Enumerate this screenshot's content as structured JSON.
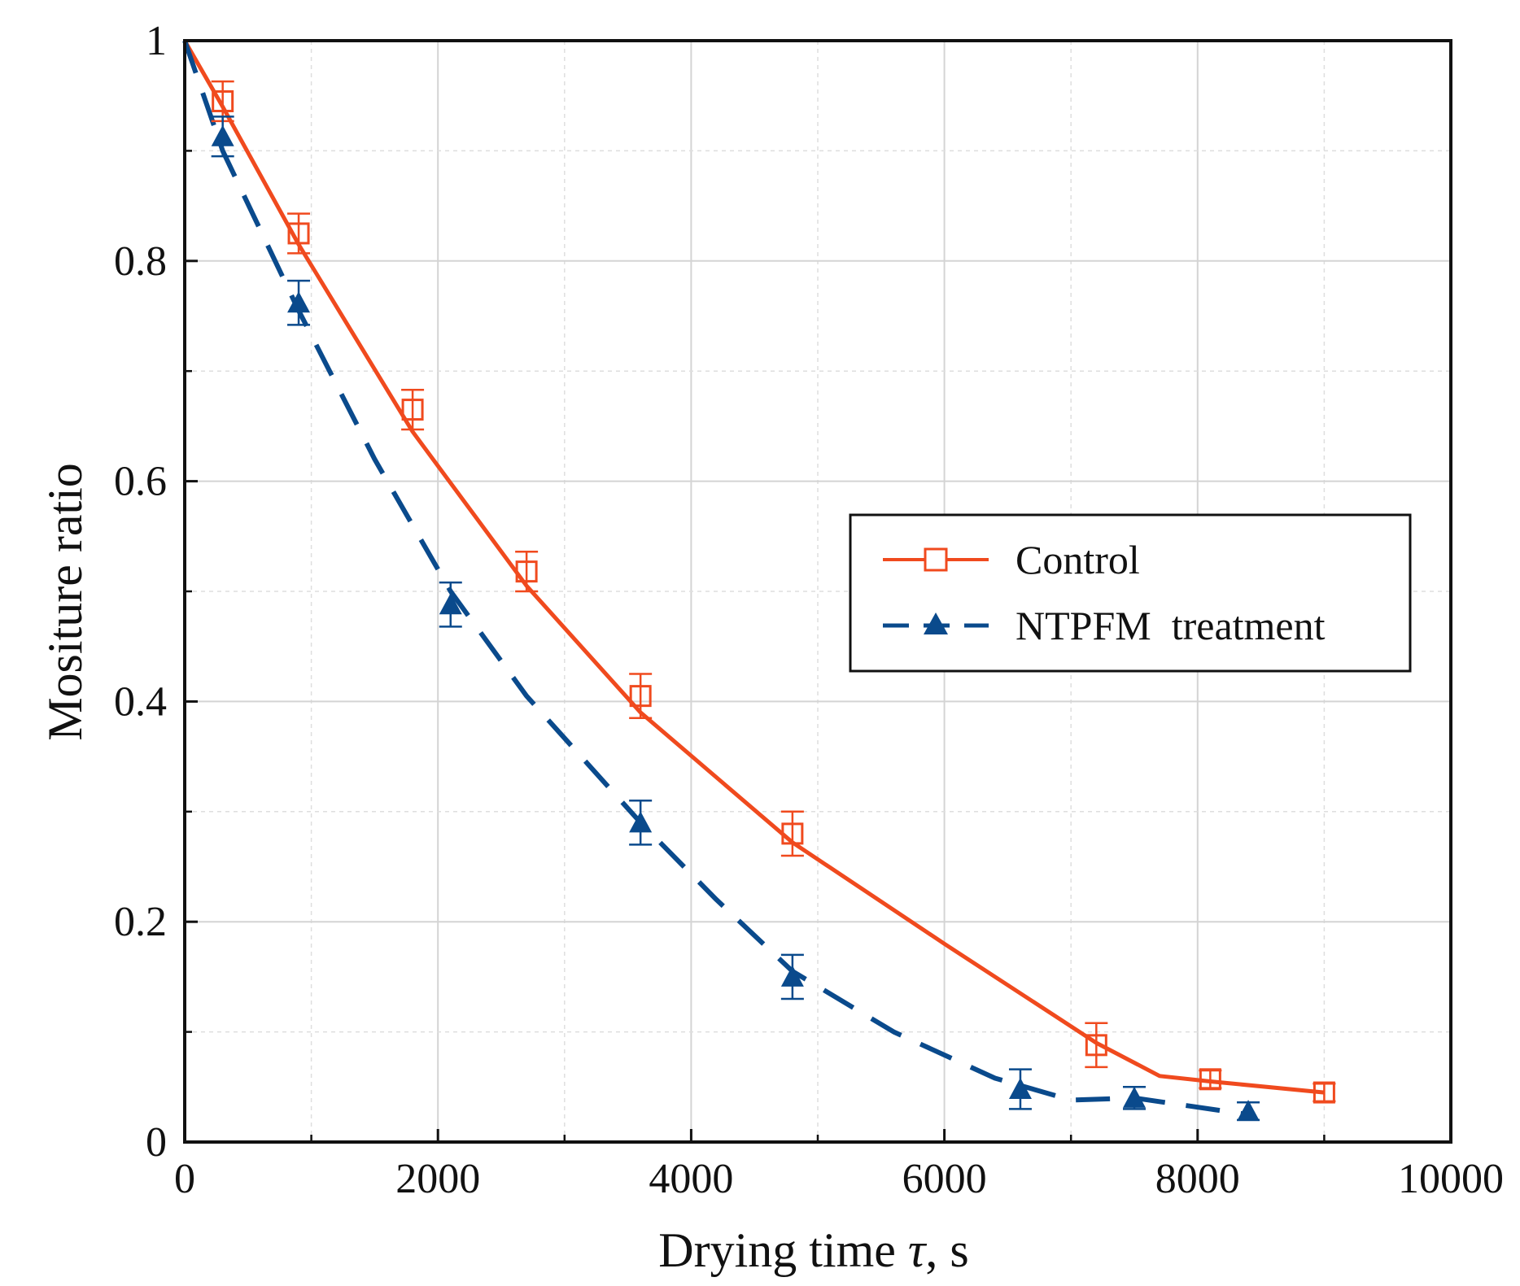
{
  "chart_data": {
    "type": "line",
    "title": "",
    "xlabel_prefix": "Drying time ",
    "xlabel_symbol": "τ",
    "xlabel_suffix": ", s",
    "ylabel": "Mositure ratio",
    "xlim": [
      0,
      10000
    ],
    "ylim": [
      0,
      1
    ],
    "x_ticks": [
      0,
      2000,
      4000,
      6000,
      8000,
      10000
    ],
    "x_tick_labels": [
      "0",
      "2000",
      "4000",
      "6000",
      "8000",
      "10000"
    ],
    "x_minor_ticks": [
      1000,
      3000,
      5000,
      7000,
      9000
    ],
    "y_ticks": [
      0,
      0.2,
      0.4,
      0.6,
      0.8,
      1
    ],
    "y_tick_labels": [
      "0",
      "0.2",
      "0.4",
      "0.6",
      "0.8",
      "1"
    ],
    "y_minor_ticks": [
      0.1,
      0.3,
      0.5,
      0.7,
      0.9
    ],
    "grid": true,
    "legend_position": "middle-right",
    "series": [
      {
        "name": "Control",
        "color": "#f04a1e",
        "marker": "open-square",
        "line_style": "solid",
        "x": [
          0,
          300,
          900,
          1800,
          2700,
          3600,
          4800,
          7200,
          8100,
          9000
        ],
        "y": [
          1.0,
          0.945,
          0.825,
          0.665,
          0.518,
          0.405,
          0.28,
          0.088,
          0.057,
          0.045
        ],
        "error": [
          0,
          0.018,
          0.018,
          0.018,
          0.018,
          0.02,
          0.02,
          0.02,
          0.008,
          0.008
        ],
        "fit_x": [
          0,
          300,
          900,
          1800,
          2700,
          3600,
          4800,
          6000,
          7200,
          7700,
          8100,
          9000
        ],
        "fit_y": [
          1.0,
          0.94,
          0.815,
          0.645,
          0.505,
          0.39,
          0.272,
          0.18,
          0.09,
          0.06,
          0.055,
          0.045
        ]
      },
      {
        "name": "NTPFM  treatment",
        "color": "#0a4a8c",
        "marker": "filled-triangle",
        "line_style": "dashed",
        "x": [
          0,
          300,
          900,
          2100,
          3600,
          4800,
          6600,
          7500,
          8400
        ],
        "y": [
          1.0,
          0.913,
          0.762,
          0.488,
          0.29,
          0.15,
          0.048,
          0.04,
          0.028
        ],
        "error": [
          0,
          0.018,
          0.02,
          0.02,
          0.02,
          0.02,
          0.018,
          0.01,
          0.008
        ],
        "fit_x": [
          0,
          300,
          900,
          1500,
          2100,
          2700,
          3600,
          4200,
          4800,
          5600,
          6400,
          7000,
          7500,
          8400
        ],
        "fit_y": [
          1.0,
          0.9,
          0.755,
          0.62,
          0.5,
          0.405,
          0.29,
          0.22,
          0.155,
          0.1,
          0.058,
          0.038,
          0.04,
          0.025
        ]
      }
    ]
  }
}
